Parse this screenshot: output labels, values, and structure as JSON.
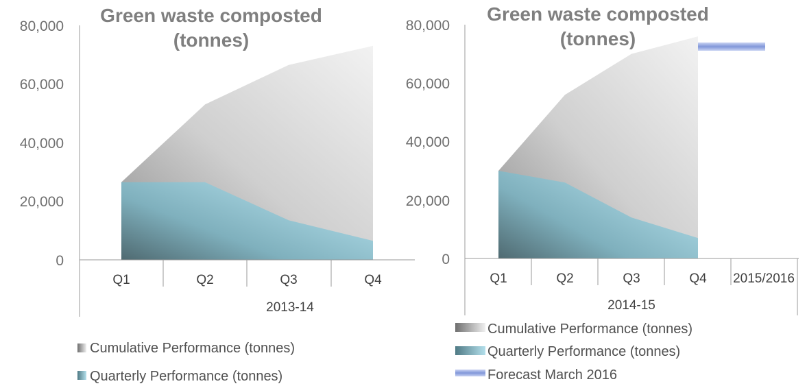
{
  "chart_data": [
    {
      "type": "area",
      "title": "Green waste composted (tonnes)",
      "title_lines": [
        "Green waste composted",
        "(tonnes)"
      ],
      "categories": [
        "Q1",
        "Q2",
        "Q3",
        "Q4"
      ],
      "group_label": "2013-14",
      "ylim": [
        0,
        80000
      ],
      "yticks": [
        0,
        20000,
        40000,
        60000,
        80000
      ],
      "ytick_labels": [
        "0",
        "20,000",
        "40,000",
        "60,000",
        "80,000"
      ],
      "grid": false,
      "legend_position": "bottom",
      "series": [
        {
          "name": "Cumulative Performance (tonnes)",
          "values": [
            26500,
            53000,
            66500,
            73000
          ],
          "color": "#c8c8c8"
        },
        {
          "name": "Quarterly Performance (tonnes)",
          "values": [
            26500,
            26500,
            13500,
            6500
          ],
          "color": "#7fb6c3"
        }
      ]
    },
    {
      "type": "area",
      "title": "Green waste composted (tonnes)",
      "title_lines": [
        "Green waste composted",
        "(tonnes)"
      ],
      "categories": [
        "Q1",
        "Q2",
        "Q3",
        "Q4",
        "2015/2016"
      ],
      "group_label": "2014-15",
      "ylim": [
        0,
        80000
      ],
      "yticks": [
        0,
        20000,
        40000,
        60000,
        80000
      ],
      "ytick_labels": [
        "0",
        "20,000",
        "40,000",
        "60,000",
        "80,000"
      ],
      "grid": false,
      "legend_position": "bottom",
      "series": [
        {
          "name": "Cumulative Performance (tonnes)",
          "values": [
            30000,
            56000,
            70000,
            76000,
            null
          ],
          "color": "#c8c8c8"
        },
        {
          "name": "Quarterly Performance (tonnes)",
          "values": [
            30000,
            26000,
            14000,
            7000,
            null
          ],
          "color": "#7fb6c3"
        },
        {
          "name": "Forecast March 2016",
          "values": [
            null,
            null,
            null,
            null,
            72500
          ],
          "color": "#8fa2dc",
          "style": "bar"
        }
      ]
    }
  ]
}
